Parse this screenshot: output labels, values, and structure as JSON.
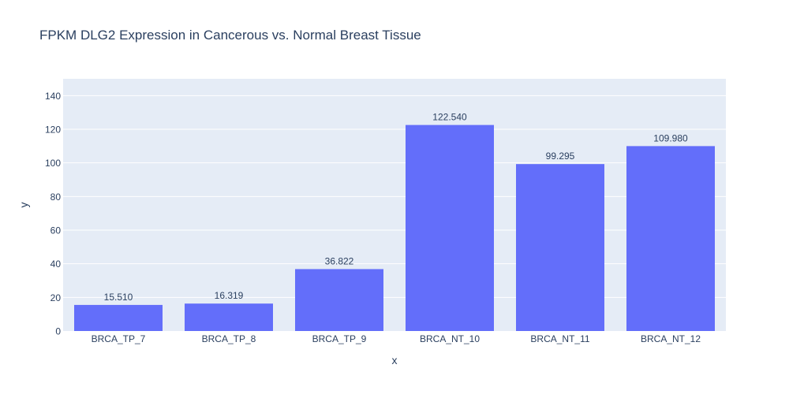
{
  "chart_data": {
    "type": "bar",
    "title": "FPKM DLG2 Expression in Cancerous vs. Normal Breast Tissue",
    "xlabel": "x",
    "ylabel": "y",
    "categories": [
      "BRCA_TP_7",
      "BRCA_TP_8",
      "BRCA_TP_9",
      "BRCA_NT_10",
      "BRCA_NT_11",
      "BRCA_NT_12"
    ],
    "values": [
      15.51,
      16.319,
      36.822,
      122.54,
      99.295,
      109.98
    ],
    "data_labels": [
      "15.510",
      "16.319",
      "36.822",
      "122.540",
      "99.295",
      "109.980"
    ],
    "ylim": [
      0,
      150
    ],
    "yticks": [
      0,
      20,
      40,
      60,
      80,
      100,
      120,
      140
    ],
    "grid": true,
    "colors": {
      "bar": "#636efa",
      "plot_background": "#e5ecf6",
      "gridline": "#ffffff",
      "text": "#2a3f5f"
    }
  }
}
